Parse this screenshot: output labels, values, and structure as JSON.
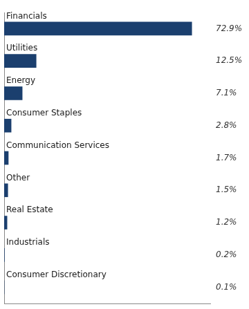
{
  "chart_data": {
    "type": "bar",
    "orientation": "horizontal",
    "categories": [
      "Financials",
      "Utilities",
      "Energy",
      "Consumer Staples",
      "Communication Services",
      "Other",
      "Real Estate",
      "Industrials",
      "Consumer Discretionary"
    ],
    "values": [
      72.9,
      12.5,
      7.1,
      2.8,
      1.7,
      1.5,
      1.2,
      0.2,
      0.1
    ],
    "value_labels": [
      "72.9%",
      "12.5%",
      "7.1%",
      "2.8%",
      "1.7%",
      "1.5%",
      "1.2%",
      "0.2%",
      "0.1%"
    ],
    "data_labels": true,
    "color": "#1b3f6e",
    "xlim": [
      0,
      80
    ],
    "grid": false,
    "tick_labels": false
  }
}
